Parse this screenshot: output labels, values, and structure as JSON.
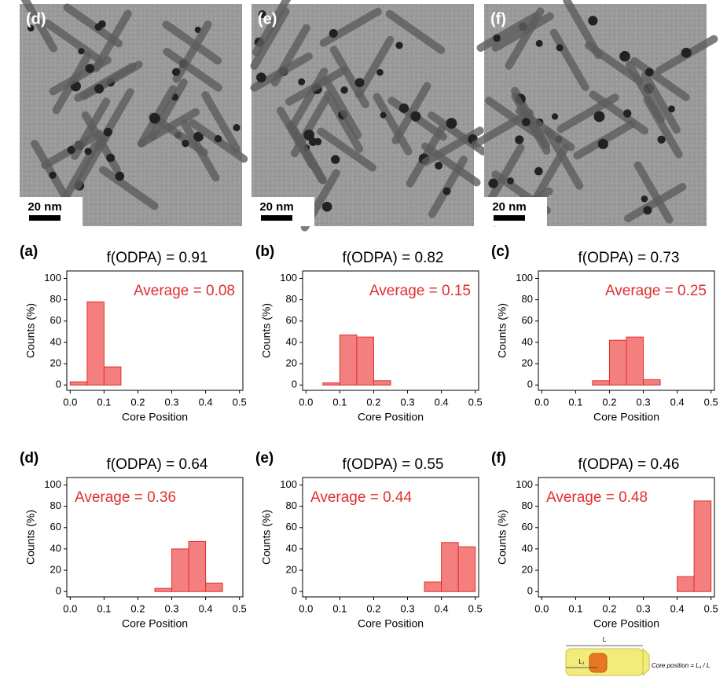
{
  "images": [
    {
      "label": "(d)",
      "scale_bar": "20 nm"
    },
    {
      "label": "(e)",
      "scale_bar": "20 nm"
    },
    {
      "label": "(f)",
      "scale_bar": "20 nm"
    }
  ],
  "chart_data": [
    {
      "type": "histogram",
      "label": "(a)",
      "title": "f(ODPA) = 0.91",
      "annotation": "Average = 0.08",
      "annotation_position": "upper right",
      "xlabel": "Core Position",
      "ylabel": "Counts (%)",
      "color": "#f47f7f",
      "edge_color": "#e0302e",
      "bins": [
        0,
        0.05,
        0.1,
        0.15,
        0.2,
        0.25,
        0.3,
        0.35,
        0.4,
        0.45,
        0.5
      ],
      "values": [
        3,
        78,
        17,
        0,
        0,
        0,
        0,
        0,
        0,
        0
      ],
      "xlim": [
        -0.01,
        0.51
      ],
      "xticks": [
        {
          "value": 0,
          "label": "0.0"
        },
        0.1,
        0.2,
        0.3,
        0.4,
        0.5
      ],
      "ylim": [
        -5,
        107
      ],
      "yticks": [
        0,
        20,
        40,
        60,
        80,
        100
      ]
    },
    {
      "type": "histogram",
      "label": "(b)",
      "title": "f(ODPA) = 0.82",
      "annotation": "Average = 0.15",
      "annotation_position": "upper right",
      "xlabel": "Core Position",
      "ylabel": "Counts (%)",
      "color": "#f47f7f",
      "edge_color": "#e0302e",
      "bins": [
        0,
        0.05,
        0.1,
        0.15,
        0.2,
        0.25,
        0.3,
        0.35,
        0.4,
        0.45,
        0.5
      ],
      "values": [
        0,
        2,
        47,
        45,
        4,
        0,
        0,
        0,
        0,
        0
      ],
      "xlim": [
        -0.01,
        0.51
      ],
      "xticks": [
        {
          "value": 0,
          "label": "0.0"
        },
        0.1,
        0.2,
        0.3,
        0.4,
        0.5
      ],
      "ylim": [
        -5,
        107
      ],
      "yticks": [
        0,
        20,
        40,
        60,
        80,
        100
      ]
    },
    {
      "type": "histogram",
      "label": "(c)",
      "title": "f(ODPA) = 0.73",
      "annotation": "Average = 0.25",
      "annotation_position": "upper right",
      "xlabel": "Core Position",
      "ylabel": "Counts (%)",
      "color": "#f47f7f",
      "edge_color": "#e0302e",
      "bins": [
        0,
        0.05,
        0.1,
        0.15,
        0.2,
        0.25,
        0.3,
        0.35,
        0.4,
        0.45,
        0.5
      ],
      "values": [
        0,
        0,
        0,
        4,
        42,
        45,
        5,
        0,
        0,
        0
      ],
      "xlim": [
        -0.01,
        0.51
      ],
      "xticks": [
        {
          "value": 0,
          "label": "0.0"
        },
        0.1,
        0.2,
        0.3,
        0.4,
        0.5
      ],
      "ylim": [
        -5,
        107
      ],
      "yticks": [
        0,
        20,
        40,
        60,
        80,
        100
      ]
    },
    {
      "type": "histogram",
      "label": "(d)",
      "title": "f(ODPA) = 0.64",
      "annotation": "Average = 0.36",
      "annotation_position": "upper left",
      "xlabel": "Core Position",
      "ylabel": "Counts (%)",
      "color": "#f47f7f",
      "edge_color": "#e0302e",
      "bins": [
        0,
        0.05,
        0.1,
        0.15,
        0.2,
        0.25,
        0.3,
        0.35,
        0.4,
        0.45,
        0.5
      ],
      "values": [
        0,
        0,
        0,
        0,
        0,
        3,
        40,
        47,
        8,
        0
      ],
      "xlim": [
        -0.01,
        0.51
      ],
      "xticks": [
        {
          "value": 0,
          "label": "0.0"
        },
        0.1,
        0.2,
        0.3,
        0.4,
        0.5
      ],
      "ylim": [
        -5,
        107
      ],
      "yticks": [
        0,
        20,
        40,
        60,
        80,
        100
      ]
    },
    {
      "type": "histogram",
      "label": "(e)",
      "title": "f(ODPA) = 0.55",
      "annotation": "Average = 0.44",
      "annotation_position": "upper left",
      "xlabel": "Core Position",
      "ylabel": "Counts (%)",
      "color": "#f47f7f",
      "edge_color": "#e0302e",
      "bins": [
        0,
        0.05,
        0.1,
        0.15,
        0.2,
        0.25,
        0.3,
        0.35,
        0.4,
        0.45,
        0.5
      ],
      "values": [
        0,
        0,
        0,
        0,
        0,
        0,
        0,
        9,
        46,
        42
      ],
      "xlim": [
        -0.01,
        0.51
      ],
      "xticks": [
        {
          "value": 0,
          "label": "0.0"
        },
        0.1,
        0.2,
        0.3,
        0.4,
        0.5
      ],
      "ylim": [
        -5,
        107
      ],
      "yticks": [
        0,
        20,
        40,
        60,
        80,
        100
      ]
    },
    {
      "type": "histogram",
      "label": "(f)",
      "title": "f(ODPA) = 0.46",
      "annotation": "Average = 0.48",
      "annotation_position": "upper left",
      "xlabel": "Core Position",
      "ylabel": "Counts (%)",
      "color": "#f47f7f",
      "edge_color": "#e0302e",
      "bins": [
        0,
        0.05,
        0.1,
        0.15,
        0.2,
        0.25,
        0.3,
        0.35,
        0.4,
        0.45,
        0.5
      ],
      "values": [
        0,
        0,
        0,
        0,
        0,
        0,
        0,
        0,
        14,
        85
      ],
      "xlim": [
        -0.01,
        0.51
      ],
      "xticks": [
        {
          "value": 0,
          "label": "0.0"
        },
        0.1,
        0.2,
        0.3,
        0.4,
        0.5
      ],
      "ylim": [
        -5,
        107
      ],
      "yticks": [
        0,
        20,
        40,
        60,
        80,
        100
      ]
    }
  ],
  "diagram": {
    "length_label": "L",
    "core_label": "L₁",
    "formula": "Core position = L₁ / L"
  }
}
